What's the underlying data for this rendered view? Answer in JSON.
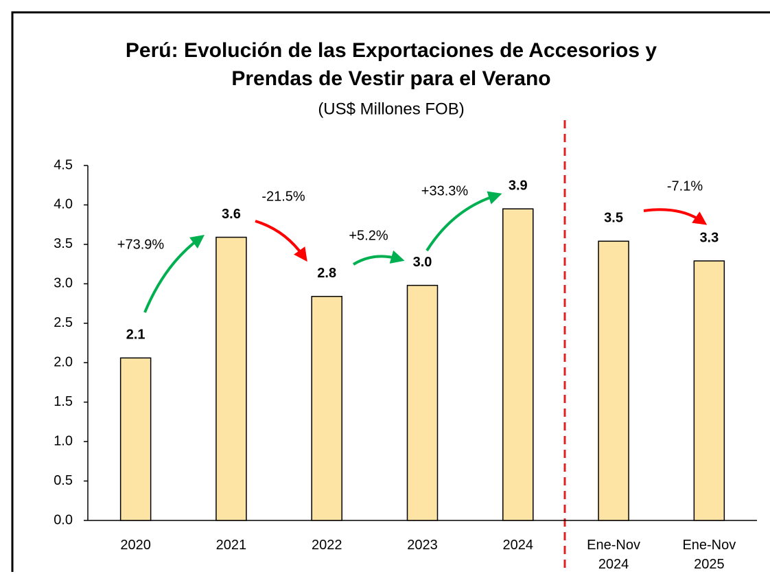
{
  "chart_data": {
    "type": "bar",
    "title": [
      "Perú: Evolución de las Exportaciones de Accesorios y",
      "Prendas de Vestir para el Verano"
    ],
    "subtitle": "(US$ Millones FOB)",
    "categories": [
      "2020",
      "2021",
      "2022",
      "2023",
      "2024",
      "Ene-Nov 2024",
      "Ene-Nov 2025"
    ],
    "values": [
      2.06,
      3.59,
      2.84,
      2.98,
      3.95,
      3.54,
      3.29
    ],
    "value_labels": [
      "2.1",
      "3.6",
      "2.8",
      "3.0",
      "3.9",
      "3.5",
      "3.3"
    ],
    "color": "#fde4a5",
    "ylim": [
      0,
      4.5
    ],
    "yticks": [
      {
        "value": 0,
        "label": "0.0"
      },
      0.5,
      {
        "value": 1,
        "label": "1.0"
      },
      1.5,
      {
        "value": 2,
        "label": "2.0"
      },
      2.5,
      {
        "value": 3,
        "label": "3.0"
      },
      3.5,
      {
        "value": 4,
        "label": "4.0"
      },
      4.5
    ],
    "annotations": [
      {
        "text": "+73.9%",
        "color": "#00b050"
      },
      {
        "text": "-21.5%",
        "color": "#ff0000"
      },
      {
        "text": "+5.2%",
        "color": "#00b050"
      },
      {
        "text": "+33.3%",
        "color": "#00b050"
      },
      {
        "text": "-7.1%",
        "color": "#ff0000"
      }
    ]
  }
}
